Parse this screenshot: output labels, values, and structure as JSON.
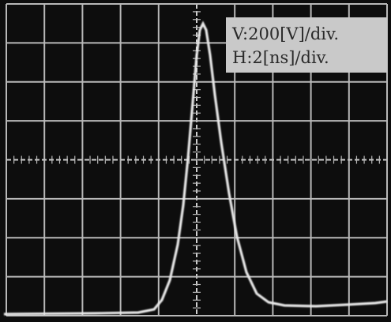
{
  "annotation": {
    "vertical": "V:200[V]/div.",
    "horizontal": "H:2[ns]/div."
  }
}
